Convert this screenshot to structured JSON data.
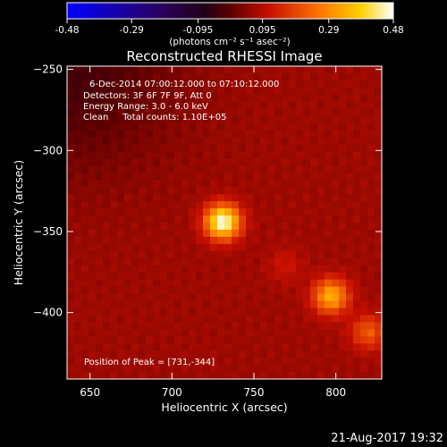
{
  "chart_data": {
    "type": "heatmap",
    "title": "Reconstructed RHESSI Image",
    "colorbar": {
      "ticks": [
        -0.48,
        -0.29,
        -0.095,
        0.095,
        0.29,
        0.48
      ],
      "tick_labels": [
        "-0.48",
        "-0.29",
        "-0.095",
        "0.095",
        "0.29",
        "0.48"
      ],
      "unit_label": "(photons cm⁻² s⁻¹ asec⁻²)",
      "range": [
        -0.48,
        0.48
      ]
    },
    "xlabel": "Heliocentric X (arcsec)",
    "ylabel": "Heliocentric Y (arcsec)",
    "xlim": [
      636,
      828
    ],
    "ylim": [
      -441,
      -248
    ],
    "xticks": [
      650,
      700,
      750,
      800
    ],
    "yticks": [
      -250,
      -300,
      -350,
      -400
    ],
    "ytick_labels": [
      "−250",
      "−300",
      "−350",
      "−400"
    ],
    "annotations": [
      "6-Dec-2014 07:00:12.000 to 07:10:12.000",
      "Detectors: 3F 6F 7F 9F, Att 0",
      "Energy Range: 3.0 - 6.0 keV",
      "Clean     Total counts: 1.10E+05"
    ],
    "peak_label": "Position of Peak = [731,-344]",
    "sources": [
      {
        "x": 731,
        "y": -344,
        "peak": 0.48
      },
      {
        "x": 797,
        "y": -390,
        "peak": 0.34
      },
      {
        "x": 820,
        "y": -412,
        "peak": 0.22
      },
      {
        "x": 769,
        "y": -371,
        "peak": 0.12
      }
    ],
    "grid": false
  },
  "footer_date": "21-Aug-2017 19:32"
}
